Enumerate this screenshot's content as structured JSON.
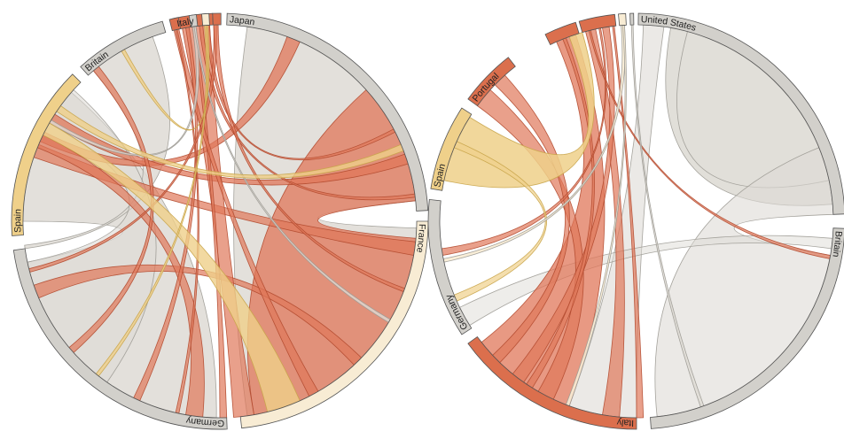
{
  "colors": {
    "grey": "#d2d0cb",
    "ribbon_grey": "#dedbd5",
    "orange": "#e0775a",
    "orange_dark": "#db6f4d",
    "yellow": "#efd08a",
    "cream": "#f8ecd4",
    "stroke_orange": "#b24a2f",
    "stroke_grey": "#9c9a94",
    "stroke_yellow": "#c8a449"
  },
  "diagrams": [
    {
      "groups": [
        {
          "label": "Japan",
          "color": "grey"
        },
        {
          "label": "France",
          "color": "cream"
        },
        {
          "label": "Germany",
          "color": "grey"
        },
        {
          "label": "Spain",
          "color": "yellow"
        },
        {
          "label": "Britain",
          "color": "grey"
        },
        {
          "label": "Italy",
          "color": "orange_dark"
        },
        {
          "label": "",
          "color": "orange_dark"
        },
        {
          "label": "",
          "color": "grey"
        },
        {
          "label": "",
          "color": "cream"
        },
        {
          "label": "",
          "color": "orange_dark"
        }
      ]
    },
    {
      "groups": [
        {
          "label": "United States",
          "color": "grey"
        },
        {
          "label": "Britain",
          "color": "grey"
        },
        {
          "label": "Italy",
          "color": "orange_dark"
        },
        {
          "label": "Germany",
          "color": "grey"
        },
        {
          "label": "Spain",
          "color": "yellow"
        },
        {
          "label": "Portugal",
          "color": "orange_dark"
        },
        {
          "label": "",
          "color": "orange_dark"
        },
        {
          "label": "",
          "color": "orange_dark"
        },
        {
          "label": "",
          "color": "cream"
        },
        {
          "label": "",
          "color": "grey"
        }
      ]
    }
  ]
}
